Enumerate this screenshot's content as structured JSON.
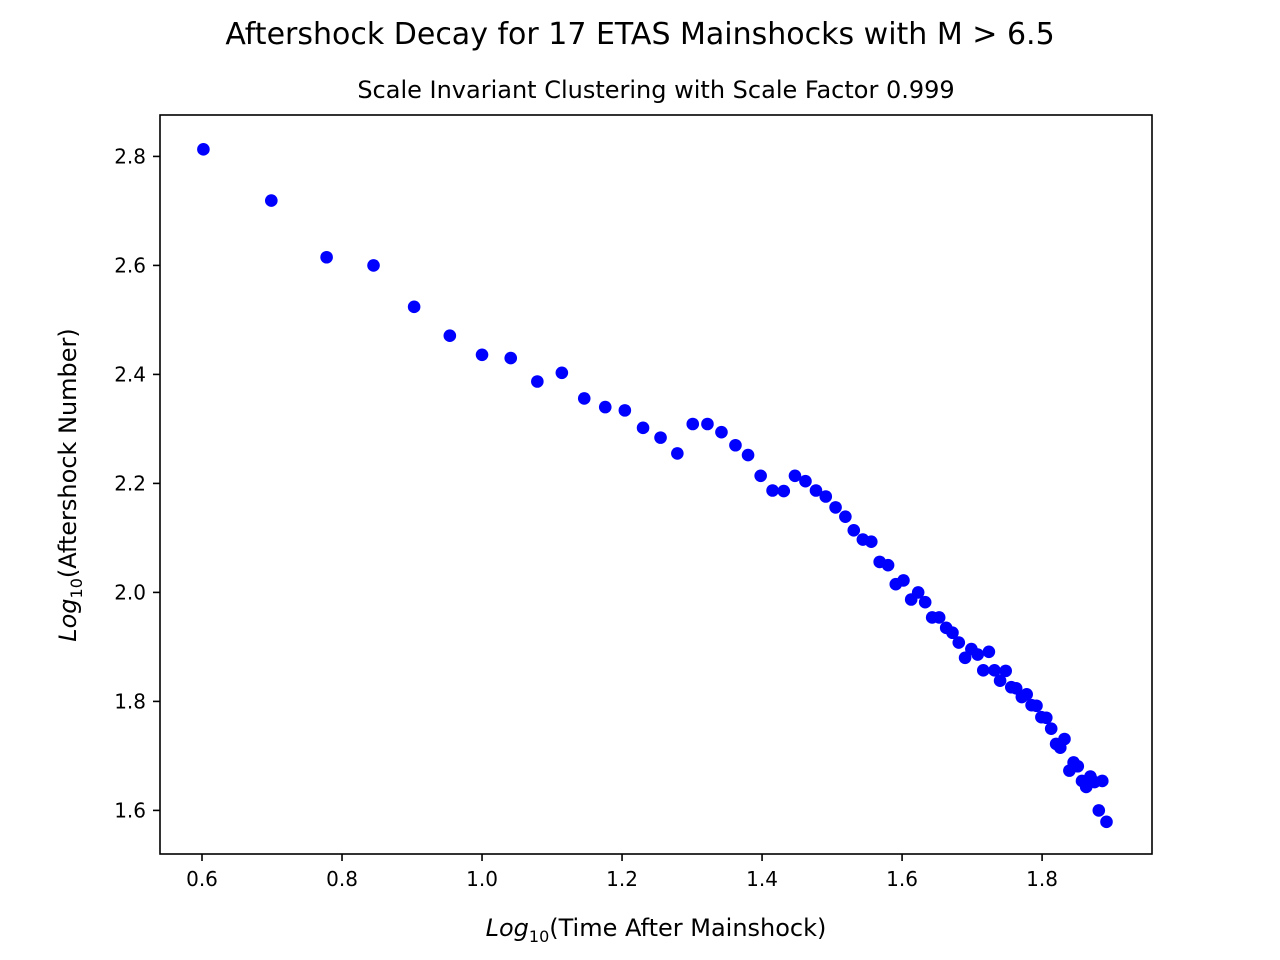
{
  "chart_data": {
    "type": "scatter",
    "title": "Aftershock Decay for 17 ETAS Mainshocks with M > 6.5",
    "subtitle": "Scale Invariant Clustering with Scale Factor 0.999",
    "xlabel": {
      "prefix": "Log",
      "sub": "10",
      "suffix": "(Time After Mainshock)"
    },
    "ylabel": {
      "prefix": "Log",
      "sub": "10",
      "suffix": "(Aftershock Number)"
    },
    "xlim": [
      0.54,
      1.957
    ],
    "ylim": [
      1.52,
      2.876
    ],
    "xticks": [
      0.6,
      0.8,
      1.0,
      1.2,
      1.4,
      1.6,
      1.8
    ],
    "xtick_labels": [
      "0.6",
      "0.8",
      "1.0",
      "1.2",
      "1.4",
      "1.6",
      "1.8"
    ],
    "yticks": [
      1.6,
      1.8,
      2.0,
      2.2,
      2.4,
      2.6,
      2.8
    ],
    "ytick_labels": [
      "1.6",
      "1.8",
      "2.0",
      "2.2",
      "2.4",
      "2.6",
      "2.8"
    ],
    "grid": false,
    "marker_color": "#0000ff",
    "points": [
      [
        0.602,
        2.813
      ],
      [
        0.699,
        2.719
      ],
      [
        0.778,
        2.615
      ],
      [
        0.845,
        2.6
      ],
      [
        0.903,
        2.524
      ],
      [
        0.954,
        2.471
      ],
      [
        1.0,
        2.436
      ],
      [
        1.041,
        2.43
      ],
      [
        1.079,
        2.387
      ],
      [
        1.114,
        2.403
      ],
      [
        1.146,
        2.356
      ],
      [
        1.176,
        2.34
      ],
      [
        1.204,
        2.334
      ],
      [
        1.23,
        2.302
      ],
      [
        1.255,
        2.284
      ],
      [
        1.279,
        2.255
      ],
      [
        1.301,
        2.309
      ],
      [
        1.322,
        2.309
      ],
      [
        1.342,
        2.294
      ],
      [
        1.362,
        2.27
      ],
      [
        1.38,
        2.252
      ],
      [
        1.398,
        2.214
      ],
      [
        1.415,
        2.187
      ],
      [
        1.431,
        2.186
      ],
      [
        1.447,
        2.214
      ],
      [
        1.462,
        2.204
      ],
      [
        1.477,
        2.187
      ],
      [
        1.491,
        2.176
      ],
      [
        1.505,
        2.156
      ],
      [
        1.519,
        2.139
      ],
      [
        1.531,
        2.114
      ],
      [
        1.544,
        2.097
      ],
      [
        1.556,
        2.093
      ],
      [
        1.568,
        2.056
      ],
      [
        1.58,
        2.05
      ],
      [
        1.591,
        2.015
      ],
      [
        1.602,
        2.022
      ],
      [
        1.613,
        1.987
      ],
      [
        1.623,
        2.0
      ],
      [
        1.633,
        1.982
      ],
      [
        1.643,
        1.954
      ],
      [
        1.653,
        1.954
      ],
      [
        1.663,
        1.935
      ],
      [
        1.672,
        1.926
      ],
      [
        1.681,
        1.908
      ],
      [
        1.69,
        1.88
      ],
      [
        1.699,
        1.896
      ],
      [
        1.708,
        1.886
      ],
      [
        1.716,
        1.857
      ],
      [
        1.724,
        1.891
      ],
      [
        1.732,
        1.857
      ],
      [
        1.74,
        1.838
      ],
      [
        1.748,
        1.856
      ],
      [
        1.756,
        1.826
      ],
      [
        1.763,
        1.824
      ],
      [
        1.771,
        1.808
      ],
      [
        1.778,
        1.813
      ],
      [
        1.785,
        1.793
      ],
      [
        1.792,
        1.792
      ],
      [
        1.799,
        1.771
      ],
      [
        1.806,
        1.77
      ],
      [
        1.813,
        1.75
      ],
      [
        1.82,
        1.722
      ],
      [
        1.826,
        1.715
      ],
      [
        1.832,
        1.731
      ],
      [
        1.839,
        1.673
      ],
      [
        1.845,
        1.688
      ],
      [
        1.851,
        1.681
      ],
      [
        1.857,
        1.654
      ],
      [
        1.863,
        1.643
      ],
      [
        1.869,
        1.662
      ],
      [
        1.875,
        1.652
      ],
      [
        1.881,
        1.6
      ],
      [
        1.886,
        1.654
      ],
      [
        1.892,
        1.579
      ]
    ]
  }
}
